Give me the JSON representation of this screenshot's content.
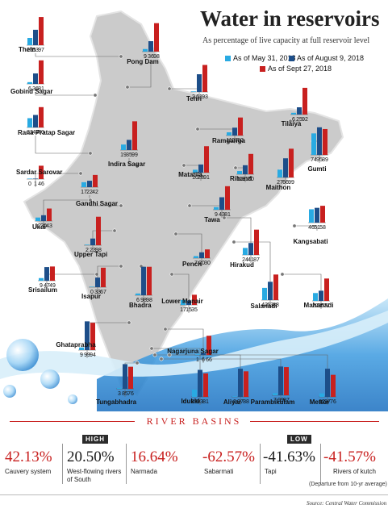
{
  "header": {
    "title": "Water in reservoirs",
    "subtitle": "As percentage of live capacity at full reservoir level"
  },
  "legend": [
    {
      "label": "As of May 31, 2018",
      "color": "#29aae2"
    },
    {
      "label": "As of August 9, 2018",
      "color": "#1d4e89"
    },
    {
      "label": "As of Sept 27, 2018",
      "color": "#c8201f"
    }
  ],
  "colors": {
    "may": "#29aae2",
    "aug": "#1d4e89",
    "sep": "#c8201f",
    "map": "#c8c8c8",
    "water": "#2d8fd5"
  },
  "chart_data": {
    "type": "bar",
    "series": [
      {
        "name": "As of May 31, 2018"
      },
      {
        "name": "As of August 9, 2018"
      },
      {
        "name": "As of Sept 27, 2018"
      }
    ],
    "reservoirs": [
      {
        "name": "Thein",
        "values": [
          25,
          53,
          97
        ]
      },
      {
        "name": "Pong Dam",
        "values": [
          9,
          36,
          98
        ]
      },
      {
        "name": "Gobind Sagar",
        "values": [
          6,
          36,
          81
        ]
      },
      {
        "name": "Tehri",
        "values": [
          2,
          61,
          93
        ]
      },
      {
        "name": "Tilaiya",
        "values": [
          6,
          25,
          92
        ]
      },
      {
        "name": "Rana Pratap Sagar",
        "values": [
          32,
          43,
          70
        ]
      },
      {
        "name": "Ramganga",
        "values": [
          11,
          27,
          62
        ]
      },
      {
        "name": "Gumti",
        "values": [
          74,
          95,
          89
        ]
      },
      {
        "name": "Indira Sagar",
        "values": [
          19,
          35,
          99
        ]
      },
      {
        "name": "Sardar Sarovar",
        "values": [
          0,
          1,
          46
        ]
      },
      {
        "name": "Matatila",
        "values": [
          10,
          28,
          91
        ]
      },
      {
        "name": "Rihand",
        "values": [
          11,
          31,
          70
        ]
      },
      {
        "name": "Maithon",
        "values": [
          27,
          66,
          99
        ]
      },
      {
        "name": "Gandhi Sagar",
        "values": [
          17,
          22,
          42
        ]
      },
      {
        "name": "Ukai",
        "values": [
          12,
          20,
          43
        ]
      },
      {
        "name": "Tawa",
        "values": [
          9,
          43,
          81
        ]
      },
      {
        "name": "Kangsabati",
        "values": [
          46,
          51,
          58
        ]
      },
      {
        "name": "Upper Tapi",
        "values": [
          2,
          23,
          98
        ]
      },
      {
        "name": "Pench",
        "values": [
          7,
          20,
          30
        ]
      },
      {
        "name": "Hirakud",
        "values": [
          24,
          41,
          87
        ]
      },
      {
        "name": "Srisailum",
        "values": [
          9,
          47,
          49
        ]
      },
      {
        "name": "Isapur",
        "values": [
          0,
          33,
          67
        ]
      },
      {
        "name": "Bhadra",
        "values": [
          6,
          98,
          98
        ]
      },
      {
        "name": "Lower Manair",
        "values": [
          17,
          15,
          35
        ]
      },
      {
        "name": "Salanadi",
        "values": [
          42,
          63,
          88
        ]
      },
      {
        "name": "Mahanadi",
        "values": [
          27,
          35,
          77
        ]
      },
      {
        "name": "Ghataprabha",
        "values": [
          9,
          99,
          94
        ]
      },
      {
        "name": "Nagarjuna Sagar",
        "values": [
          1,
          6,
          66
        ]
      },
      {
        "name": "Tungabhadra",
        "values": [
          3,
          85,
          76
        ]
      },
      {
        "name": "Idukki",
        "values": [
          25,
          93,
          81
        ]
      },
      {
        "name": "Aliyar",
        "values": [
          0,
          97,
          88
        ]
      },
      {
        "name": "Parambikulam",
        "values": [
          7,
          99,
          97
        ]
      },
      {
        "name": "Mettur",
        "values": [
          12,
          97,
          76
        ]
      }
    ]
  },
  "river_basins": {
    "title": "River basins",
    "high_label": "HIGH",
    "low_label": "LOW",
    "high": [
      {
        "value": "42.13%",
        "name": "Cauvery system"
      },
      {
        "value": "20.50%",
        "name": "West-flowing rivers of South"
      },
      {
        "value": "16.64%",
        "name": "Narmada"
      }
    ],
    "low": [
      {
        "value": "-62.57%",
        "name": "Sabarmati"
      },
      {
        "value": "-41.63%",
        "name": "Tapi"
      },
      {
        "value": "-41.57%",
        "name": "Rivers of kutch"
      }
    ],
    "note": "(Departure from 10-yr average)"
  },
  "source": "Source: Central Water Commission"
}
